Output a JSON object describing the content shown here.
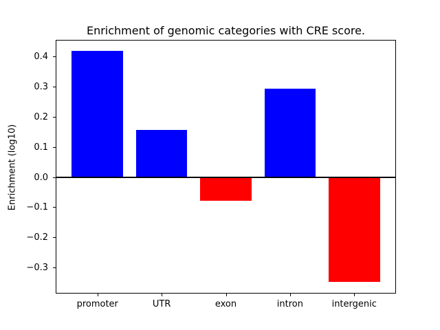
{
  "chart_data": {
    "type": "bar",
    "title": "Enrichment of genomic categories with CRE score.",
    "ylabel": "Enrichment (log10)",
    "xlabel": "",
    "categories": [
      "promoter",
      "UTR",
      "exon",
      "intron",
      "intergenic"
    ],
    "values": [
      0.418,
      0.156,
      -0.079,
      0.294,
      -0.348
    ],
    "bar_colors": [
      "#0000ff",
      "#0000ff",
      "#ff0000",
      "#0000ff",
      "#ff0000"
    ],
    "positive_color": "#0000ff",
    "negative_color": "#ff0000",
    "y_ticks": [
      0.4,
      0.3,
      0.2,
      0.1,
      0.0,
      -0.1,
      -0.2,
      -0.3
    ],
    "ylim": [
      -0.384,
      0.453
    ],
    "xlim": [
      -0.64,
      4.64
    ],
    "bar_width": 0.8,
    "zero_line": true,
    "grid": false,
    "legend": null,
    "background_color": "#ffffff",
    "axis_color": "#000000"
  }
}
